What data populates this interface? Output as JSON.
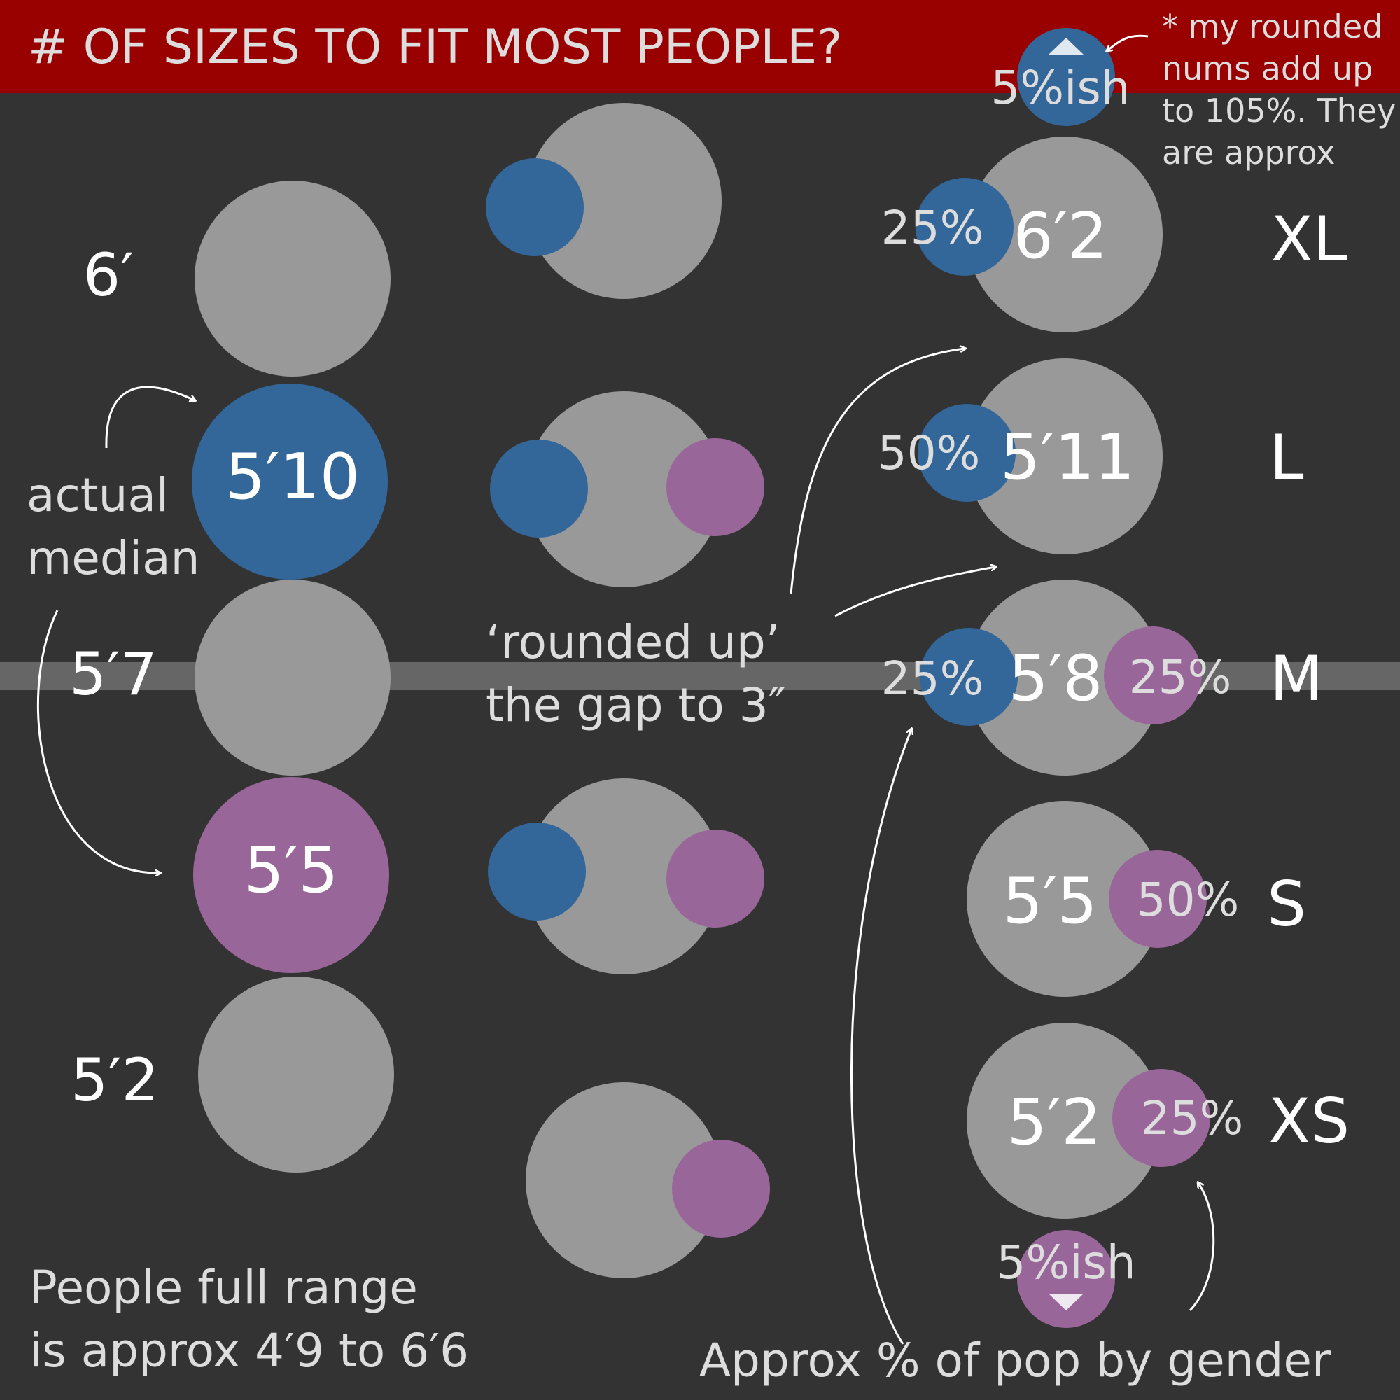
{
  "title": "# OF SIZES TO FIT MOST PEOPLE?",
  "colors": {
    "background": "#333333",
    "header": "#990000",
    "grey_circle": "#999999",
    "blue": "#336699",
    "purple": "#996699",
    "band": "#666666",
    "text_white": "#ffffff",
    "text_light": "#dddddd"
  },
  "footnote": [
    "* my rounded",
    "nums add up",
    "to 105%. They",
    "are approx"
  ],
  "left_column": {
    "heights": [
      "6′",
      "5′10",
      "5′7",
      "5′5",
      "5′2"
    ],
    "median_label": [
      "actual",
      "median"
    ],
    "range_note": [
      "People full range",
      "is approx 4′9 to 6′6"
    ]
  },
  "middle_column": {
    "note": [
      "‘rounded up’",
      "the gap to 3″"
    ]
  },
  "right_column": {
    "top_tail": "5%ish",
    "bottom_tail": "5%ish",
    "sizes": [
      {
        "height": "6′2",
        "size": "XL",
        "men": "25%",
        "women": ""
      },
      {
        "height": "5′11",
        "size": "L",
        "men": "50%",
        "women": ""
      },
      {
        "height": "5′8",
        "size": "M",
        "men": "25%",
        "women": "25%"
      },
      {
        "height": "5′5",
        "size": "S",
        "men": "",
        "women": "50%"
      },
      {
        "height": "5′2",
        "size": "XS",
        "men": "",
        "women": "25%"
      }
    ],
    "caption": "Approx % of pop by gender"
  }
}
